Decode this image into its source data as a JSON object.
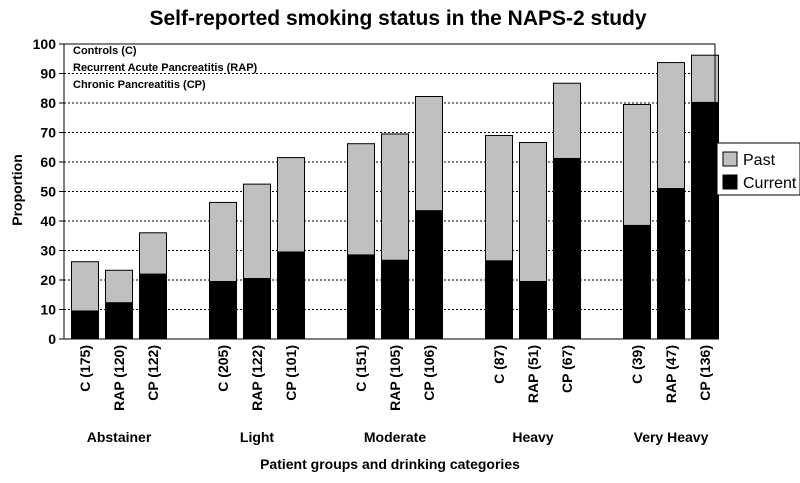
{
  "chart_data": {
    "type": "bar",
    "stacked": true,
    "title": "Self-reported smoking status in the NAPS-2 study",
    "xlabel": "Patient groups and drinking categories",
    "ylabel": "Proportion",
    "ylim": [
      0,
      100
    ],
    "yticks": [
      0,
      10,
      20,
      30,
      40,
      50,
      60,
      70,
      80,
      90,
      100
    ],
    "grid": true,
    "legend_position": "right",
    "notes": [
      "Controls (C)",
      "Recurrent Acute Pancreatitis (RAP)",
      "Chronic Pancreatitis (CP)"
    ],
    "groups": [
      {
        "name": "Abstainer",
        "categories": [
          "C (175)",
          "RAP (120)",
          "CP (122)"
        ]
      },
      {
        "name": "Light",
        "categories": [
          "C (205)",
          "RAP (122)",
          "CP (101)"
        ]
      },
      {
        "name": "Moderate",
        "categories": [
          "C (151)",
          "RAP (105)",
          "CP (106)"
        ]
      },
      {
        "name": "Heavy",
        "categories": [
          "C (87)",
          "RAP (51)",
          "CP (67)"
        ]
      },
      {
        "name": "Very Heavy",
        "categories": [
          "C (39)",
          "RAP (47)",
          "CP (136)"
        ]
      }
    ],
    "series": [
      {
        "name": "Current",
        "color": "#000000",
        "values": [
          9.5,
          12.3,
          22,
          19.5,
          20.5,
          29.5,
          28.5,
          26.7,
          43.5,
          26.5,
          19.5,
          61.2,
          38.5,
          51,
          80.2
        ]
      },
      {
        "name": "Past",
        "color": "#c0c0c0",
        "values": [
          16.7,
          11,
          14,
          26.8,
          32,
          32,
          37.7,
          42.8,
          38.7,
          42.5,
          47.1,
          25.5,
          41,
          42.7,
          16
        ]
      }
    ],
    "legend_order": [
      "Past",
      "Current"
    ]
  }
}
